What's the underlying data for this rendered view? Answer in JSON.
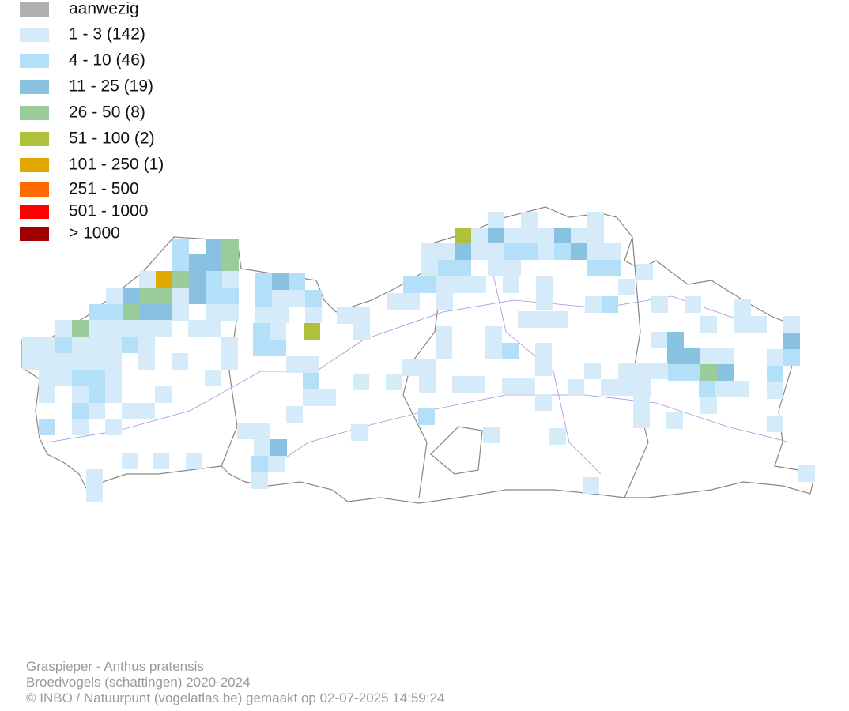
{
  "legend": {
    "items": [
      {
        "label": "aanwezig",
        "color": "#b0b0b0"
      },
      {
        "label": "1 - 3 (142)",
        "color": "#d6ebfa"
      },
      {
        "label": "4 - 10 (46)",
        "color": "#b3e0f8"
      },
      {
        "label": "11 - 25 (19)",
        "color": "#88c2e0"
      },
      {
        "label": "26 - 50 (8)",
        "color": "#99cc99"
      },
      {
        "label": "51 - 100 (2)",
        "color": "#afc13a"
      },
      {
        "label": "101 - 250 (1)",
        "color": "#e0a800"
      },
      {
        "label": "251 - 500",
        "color": "#ff6a00"
      },
      {
        "label": "501 - 1000",
        "color": "#ff0000"
      },
      {
        "label": "> 1000",
        "color": "#a00000"
      }
    ]
  },
  "footer": {
    "title": "Graspieper - Anthus pratensis",
    "subtitle": "Broedvogels (schattingen) 2020-2024",
    "credit": "© INBO / Natuurpunt (vogelatlas.be) gemaakt op 02-07-2025 14:59:24"
  }
}
